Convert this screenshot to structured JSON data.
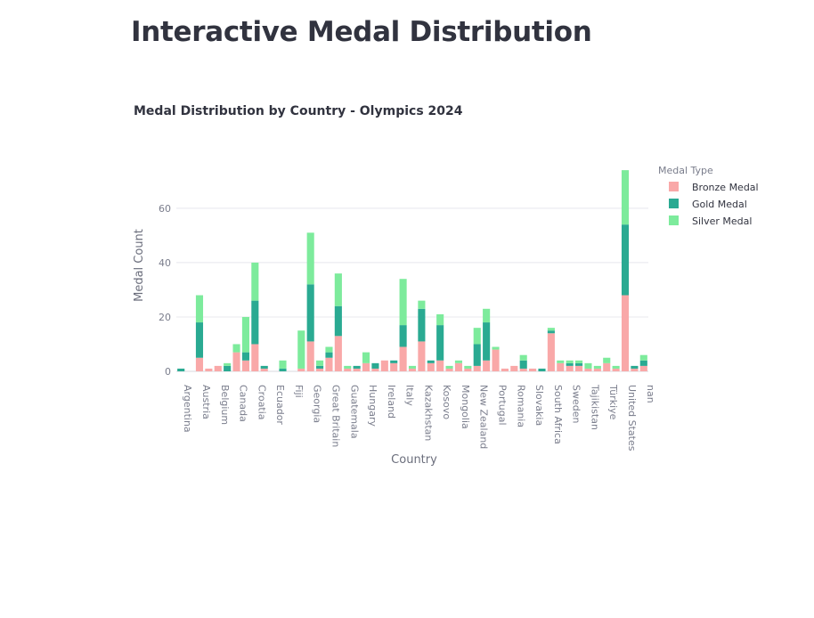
{
  "page": {
    "title": "Interactive Medal Distribution"
  },
  "colors": {
    "bronze": "#f9a8a8",
    "gold": "#2aaa92",
    "silver": "#7deb9c",
    "grid": "#e8e8ee",
    "axis_text": "#7a7d8c"
  },
  "chart_data": {
    "type": "bar",
    "barmode": "stack",
    "title": "Medal Distribution by Country - Olympics 2024",
    "xlabel": "Country",
    "ylabel": "Medal Count",
    "ylim": [
      0,
      76
    ],
    "yticks": [
      0,
      20,
      40,
      60
    ],
    "grid": true,
    "legend": {
      "title": "Medal Type",
      "placement": "top-right"
    },
    "categories": [
      "Argentina",
      "",
      "Austria",
      "",
      "Belgium",
      "",
      "Canada",
      "",
      "Croatia",
      "",
      "Ecuador",
      "",
      "Fiji",
      "",
      "Georgia",
      "",
      "Great Britain",
      "",
      "Guatemala",
      "",
      "Hungary",
      "",
      "Ireland",
      "",
      "Italy",
      "",
      "Kazakhstan",
      "",
      "Kosovo",
      "",
      "Mongolia",
      "",
      "New Zealand",
      "",
      "Portugal",
      "",
      "Romania",
      "",
      "Slovakia",
      "",
      "South Africa",
      "",
      "Sweden",
      "",
      "Tajikistan",
      "",
      "Türkiye",
      "",
      "United States",
      "",
      "nan"
    ],
    "series": [
      {
        "name": "Bronze Medal",
        "color_key": "bronze",
        "values": [
          0,
          0,
          5,
          1,
          2,
          0,
          7,
          4,
          10,
          1,
          0,
          0,
          0,
          1,
          11,
          1,
          5,
          13,
          1,
          1,
          3,
          1,
          4,
          3,
          9,
          1,
          11,
          3,
          4,
          1,
          3,
          1,
          2,
          4,
          8,
          1,
          2,
          1,
          1,
          0,
          14,
          3,
          2,
          2,
          1,
          1,
          3,
          1,
          28,
          1,
          2
        ]
      },
      {
        "name": "Gold Medal",
        "color_key": "gold",
        "values": [
          1,
          0,
          13,
          0,
          0,
          2,
          0,
          3,
          16,
          1,
          0,
          1,
          0,
          0,
          21,
          1,
          2,
          11,
          0,
          1,
          0,
          2,
          0,
          1,
          8,
          0,
          12,
          1,
          13,
          0,
          0,
          0,
          8,
          14,
          0,
          0,
          0,
          3,
          0,
          1,
          1,
          0,
          1,
          1,
          0,
          0,
          0,
          0,
          26,
          1,
          2
        ]
      },
      {
        "name": "Silver Medal",
        "color_key": "silver",
        "values": [
          0,
          0,
          10,
          0,
          0,
          1,
          3,
          13,
          14,
          0,
          0,
          3,
          0,
          14,
          19,
          2,
          2,
          12,
          1,
          0,
          4,
          0,
          0,
          0,
          17,
          1,
          3,
          0,
          4,
          1,
          1,
          1,
          6,
          5,
          1,
          0,
          0,
          2,
          0,
          0,
          1,
          1,
          1,
          1,
          2,
          1,
          2,
          1,
          20,
          0,
          2
        ]
      }
    ]
  }
}
